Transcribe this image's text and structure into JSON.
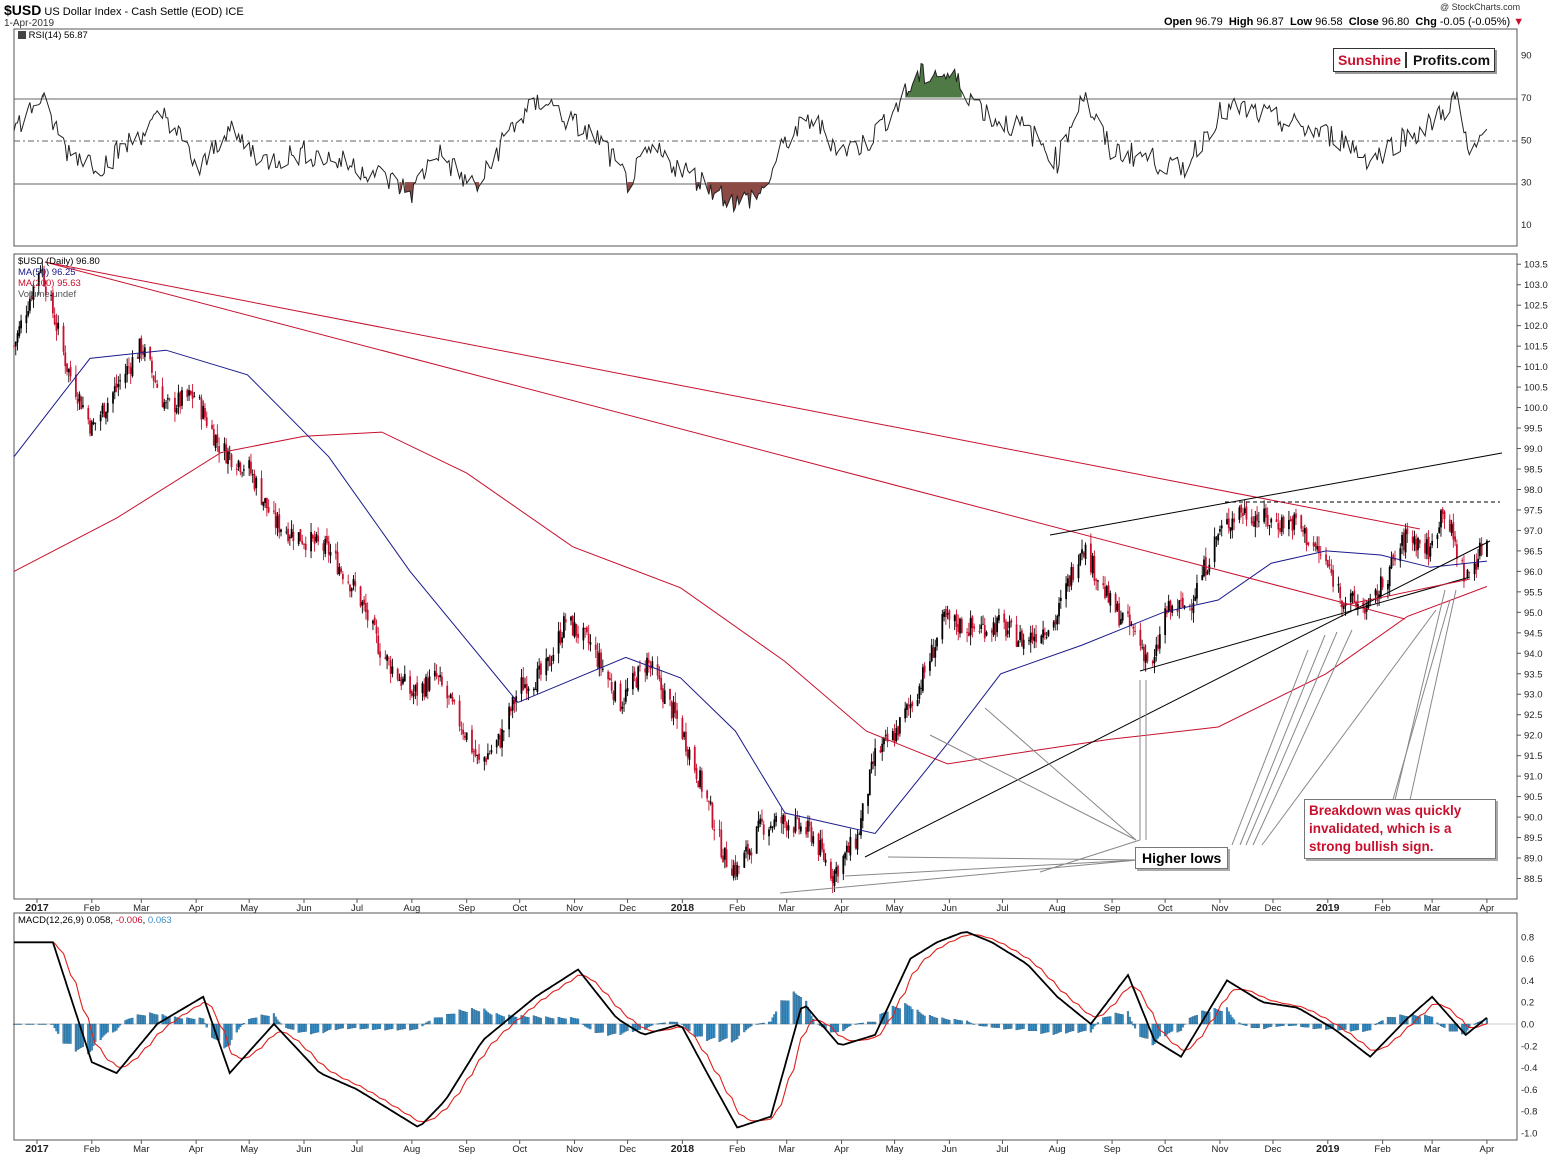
{
  "header": {
    "ticker": "$USD",
    "name": "US Dollar Index - Cash Settle (EOD)",
    "exchange": "ICE",
    "date": "1-Apr-2019",
    "open_label": "Open",
    "open": "96.79",
    "high_label": "High",
    "high": "96.87",
    "low_label": "Low",
    "low": "96.58",
    "close_label": "Close",
    "close": "96.80",
    "chg_label": "Chg",
    "chg": "-0.05 (-0.05%)",
    "watermark": "@ StockCharts.com"
  },
  "logo": {
    "part1": "Sunshine",
    "part2": "Profits.com"
  },
  "rsi_panel": {
    "legend": "RSI(14) 56.87",
    "scale": [
      "90",
      "70",
      "50",
      "30",
      "10"
    ],
    "upper": 70,
    "lower": 30,
    "mid": 50
  },
  "price_panel": {
    "legend_main": "$USD (Daily) 96.80",
    "legend_ma50": "MA(50) 96.25",
    "legend_ma200": "MA(200) 95.63",
    "legend_volume": "Volume undef",
    "ma50_color": "#1a1a8c",
    "ma200_color": "#c8102e",
    "up_color": "#000000",
    "down_color": "#c8102e"
  },
  "macd_panel": {
    "legend_prefix": "MACD(12,26,9)",
    "macd_value": "0.058",
    "signal_value": "-0.006",
    "hist_value": "0.063",
    "hist_color": "#3b8fc4",
    "scale": [
      "0.8",
      "0.6",
      "0.4",
      "0.2",
      "0.0",
      "-0.2",
      "-0.4",
      "-0.6",
      "-0.8",
      "-1.0"
    ]
  },
  "x_axis": [
    "2017",
    "Feb",
    "Mar",
    "Apr",
    "May",
    "Jun",
    "Jul",
    "Aug",
    "Sep",
    "Oct",
    "Nov",
    "Dec",
    "2018",
    "Feb",
    "Mar",
    "Apr",
    "May",
    "Jun",
    "Jul",
    "Aug",
    "Sep",
    "Oct",
    "Nov",
    "Dec",
    "2019",
    "Feb",
    "Mar",
    "Apr"
  ],
  "annotations": {
    "higher_lows": "Higher lows",
    "breakdown_line1": "Breakdown was quickly",
    "breakdown_line2": "invalidated, which is a",
    "breakdown_line3": "strong bullish sign."
  },
  "chart_data": {
    "type": "line",
    "title": "$USD US Dollar Index - Cash Settle (EOD) ICE",
    "x_range": [
      "2016-12-19",
      "2019-04-18"
    ],
    "ylim": [
      88.0,
      103.75
    ],
    "y_ticks": [
      "103.5",
      "103.0",
      "102.5",
      "102.0",
      "101.5",
      "101.0",
      "100.5",
      "100.0",
      "99.5",
      "99.0",
      "98.5",
      "98.0",
      "97.5",
      "97.0",
      "96.5",
      "96.0",
      "95.5",
      "95.0",
      "94.5",
      "94.0",
      "93.5",
      "93.0",
      "92.5",
      "92.0",
      "91.5",
      "91.0",
      "90.5",
      "90.0",
      "89.5",
      "89.0",
      "88.5"
    ],
    "series": [
      {
        "name": "$USD",
        "x": [
          "2016-12-19",
          "2017-01-03",
          "2017-01-18",
          "2017-02-01",
          "2017-02-15",
          "2017-03-01",
          "2017-03-15",
          "2017-03-31",
          "2017-04-15",
          "2017-05-01",
          "2017-05-15",
          "2017-06-01",
          "2017-06-15",
          "2017-07-01",
          "2017-07-15",
          "2017-08-01",
          "2017-08-15",
          "2017-09-01",
          "2017-09-08",
          "2017-09-20",
          "2017-10-01",
          "2017-10-15",
          "2017-10-27",
          "2017-11-10",
          "2017-11-27",
          "2017-12-12",
          "2017-12-31",
          "2018-01-15",
          "2018-01-25",
          "2018-02-01",
          "2018-02-15",
          "2018-03-01",
          "2018-03-15",
          "2018-03-27",
          "2018-04-10",
          "2018-04-20",
          "2018-05-01",
          "2018-05-15",
          "2018-05-29",
          "2018-06-15",
          "2018-06-29",
          "2018-07-13",
          "2018-07-31",
          "2018-08-15",
          "2018-08-31",
          "2018-09-14",
          "2018-09-24",
          "2018-10-01",
          "2018-10-15",
          "2018-10-31",
          "2018-11-12",
          "2018-11-30",
          "2018-12-14",
          "2018-12-31",
          "2019-01-10",
          "2019-01-25",
          "2019-02-15",
          "2019-02-28",
          "2019-03-07",
          "2019-03-20",
          "2019-04-01"
        ],
        "values": [
          101.5,
          103.5,
          101.0,
          99.5,
          100.5,
          101.5,
          100.0,
          100.3,
          99.0,
          98.5,
          97.2,
          96.8,
          96.5,
          95.5,
          94.0,
          93.0,
          93.4,
          92.0,
          91.3,
          91.9,
          93.2,
          93.5,
          94.8,
          94.2,
          92.8,
          93.8,
          92.2,
          90.4,
          89.0,
          88.7,
          89.8,
          89.9,
          89.6,
          88.6,
          89.5,
          91.5,
          92.0,
          93.2,
          94.8,
          94.6,
          94.7,
          94.3,
          94.8,
          96.7,
          95.2,
          94.5,
          93.6,
          95.0,
          95.2,
          96.9,
          97.5,
          97.2,
          97.2,
          96.2,
          95.3,
          95.1,
          96.9,
          96.5,
          97.6,
          95.8,
          96.8
        ]
      },
      {
        "name": "MA(50)",
        "x": [
          "2016-12-19",
          "2017-01-31",
          "2017-03-15",
          "2017-04-30",
          "2017-06-15",
          "2017-07-31",
          "2017-09-30",
          "2017-11-30",
          "2017-12-31",
          "2018-01-31",
          "2018-02-28",
          "2018-04-20",
          "2018-05-31",
          "2018-06-30",
          "2018-08-15",
          "2018-09-30",
          "2018-10-31",
          "2018-11-30",
          "2018-12-31",
          "2019-01-31",
          "2019-02-28",
          "2019-04-01"
        ],
        "values": [
          98.8,
          101.2,
          101.4,
          100.8,
          98.8,
          96.0,
          92.8,
          93.9,
          93.4,
          92.1,
          90.1,
          89.6,
          91.8,
          93.5,
          94.2,
          95.0,
          95.3,
          96.2,
          96.5,
          96.4,
          96.1,
          96.25
        ]
      },
      {
        "name": "MA(200)",
        "x": [
          "2016-12-19",
          "2017-02-15",
          "2017-04-15",
          "2017-06-01",
          "2017-07-15",
          "2017-09-01",
          "2017-10-31",
          "2017-12-31",
          "2018-02-28",
          "2018-04-15",
          "2018-05-31",
          "2018-07-15",
          "2018-08-31",
          "2018-10-31",
          "2018-12-31",
          "2019-02-15",
          "2019-04-01"
        ],
        "values": [
          96.0,
          97.3,
          98.9,
          99.3,
          99.4,
          98.4,
          96.6,
          95.6,
          93.8,
          92.1,
          91.3,
          91.6,
          91.9,
          92.2,
          93.5,
          94.9,
          95.63
        ]
      }
    ],
    "rsi": {
      "x": [
        "2016-12-19",
        "2017-01-03",
        "2017-01-18",
        "2017-02-07",
        "2017-02-24",
        "2017-03-15",
        "2017-04-03",
        "2017-04-18",
        "2017-05-10",
        "2017-06-01",
        "2017-06-20",
        "2017-07-10",
        "2017-08-01",
        "2017-08-15",
        "2017-09-01",
        "2017-09-08",
        "2017-09-25",
        "2017-10-15",
        "2017-10-27",
        "2017-11-15",
        "2017-12-01",
        "2017-12-15",
        "2018-01-03",
        "2018-01-20",
        "2018-02-01",
        "2018-02-15",
        "2018-03-01",
        "2018-03-15",
        "2018-04-01",
        "2018-04-15",
        "2018-05-01",
        "2018-05-15",
        "2018-05-25",
        "2018-06-05",
        "2018-06-25",
        "2018-07-15",
        "2018-08-01",
        "2018-08-15",
        "2018-08-31",
        "2018-09-20",
        "2018-10-10",
        "2018-10-31",
        "2018-11-12",
        "2018-12-01",
        "2018-12-20",
        "2019-01-10",
        "2019-01-25",
        "2019-02-10",
        "2019-02-25",
        "2019-03-05",
        "2019-03-15",
        "2019-03-22",
        "2019-04-01"
      ],
      "values": [
        55,
        70,
        45,
        38,
        50,
        62,
        35,
        55,
        40,
        44,
        40,
        35,
        25,
        45,
        30,
        28,
        55,
        70,
        60,
        50,
        30,
        45,
        35,
        26,
        20,
        25,
        50,
        60,
        45,
        48,
        65,
        80,
        82,
        78,
        60,
        55,
        40,
        72,
        45,
        42,
        35,
        62,
        65,
        60,
        55,
        50,
        40,
        50,
        55,
        62,
        70,
        40,
        57
      ]
    },
    "macd": {
      "x": [
        "2016-12-19",
        "2017-01-10",
        "2017-02-01",
        "2017-02-15",
        "2017-03-10",
        "2017-04-05",
        "2017-04-20",
        "2017-05-15",
        "2017-06-10",
        "2017-07-01",
        "2017-08-05",
        "2017-08-20",
        "2017-09-10",
        "2017-10-10",
        "2017-11-03",
        "2017-11-25",
        "2017-12-10",
        "2017-12-31",
        "2018-01-15",
        "2018-02-01",
        "2018-02-20",
        "2018-03-10",
        "2018-03-31",
        "2018-04-20",
        "2018-05-10",
        "2018-05-25",
        "2018-06-10",
        "2018-06-25",
        "2018-07-15",
        "2018-08-01",
        "2018-08-20",
        "2018-09-10",
        "2018-09-25",
        "2018-10-10",
        "2018-11-05",
        "2018-11-25",
        "2018-12-15",
        "2019-01-05",
        "2019-01-25",
        "2019-02-15",
        "2019-03-01",
        "2019-03-20",
        "2019-04-01"
      ],
      "values": [
        0.75,
        0.75,
        -0.35,
        -0.45,
        0.0,
        0.25,
        -0.45,
        0.0,
        -0.45,
        -0.6,
        -0.95,
        -0.7,
        -0.15,
        0.25,
        0.5,
        0.05,
        -0.1,
        0.0,
        -0.45,
        -0.95,
        -0.85,
        0.2,
        -0.2,
        -0.1,
        0.6,
        0.75,
        0.85,
        0.75,
        0.55,
        0.25,
        0.0,
        0.45,
        -0.15,
        -0.3,
        0.4,
        0.2,
        0.15,
        -0.05,
        -0.3,
        0.05,
        0.25,
        -0.1,
        0.058
      ]
    }
  }
}
